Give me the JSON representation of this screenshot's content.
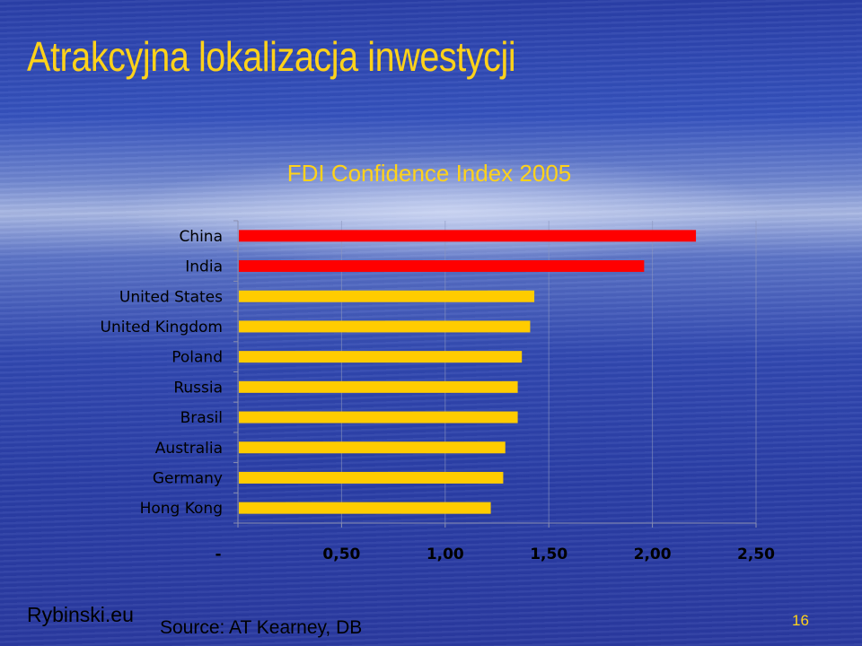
{
  "slide": {
    "title": "Atrakcyjna lokalizacja inwestycji",
    "footer_left": "Rybinski.eu",
    "source": "Source: AT Kearney, DB",
    "page_number": "16"
  },
  "colors": {
    "title": "#ffd21a",
    "highlight_bar": "#ff0000",
    "default_bar": "#ffcc00"
  },
  "chart_data": {
    "type": "bar",
    "orientation": "horizontal",
    "title": "FDI Confidence Index 2005",
    "categories": [
      "China",
      "India",
      "United States",
      "United Kingdom",
      "Poland",
      "Russia",
      "Brasil",
      "Australia",
      "Germany",
      "Hong Kong"
    ],
    "values": [
      2.21,
      1.96,
      1.43,
      1.41,
      1.37,
      1.35,
      1.35,
      1.29,
      1.28,
      1.22
    ],
    "bar_colors": [
      "#ff0000",
      "#ff0000",
      "#ffcc00",
      "#ffcc00",
      "#ffcc00",
      "#ffcc00",
      "#ffcc00",
      "#ffcc00",
      "#ffcc00",
      "#ffcc00"
    ],
    "xlim": [
      0,
      2.5
    ],
    "x_ticks": [
      0,
      0.5,
      1.0,
      1.5,
      2.0,
      2.5
    ],
    "x_tick_labels": [
      "-",
      "0,50",
      "1,00",
      "1,50",
      "2,00",
      "2,50"
    ],
    "grid": true,
    "xlabel": "",
    "ylabel": ""
  }
}
